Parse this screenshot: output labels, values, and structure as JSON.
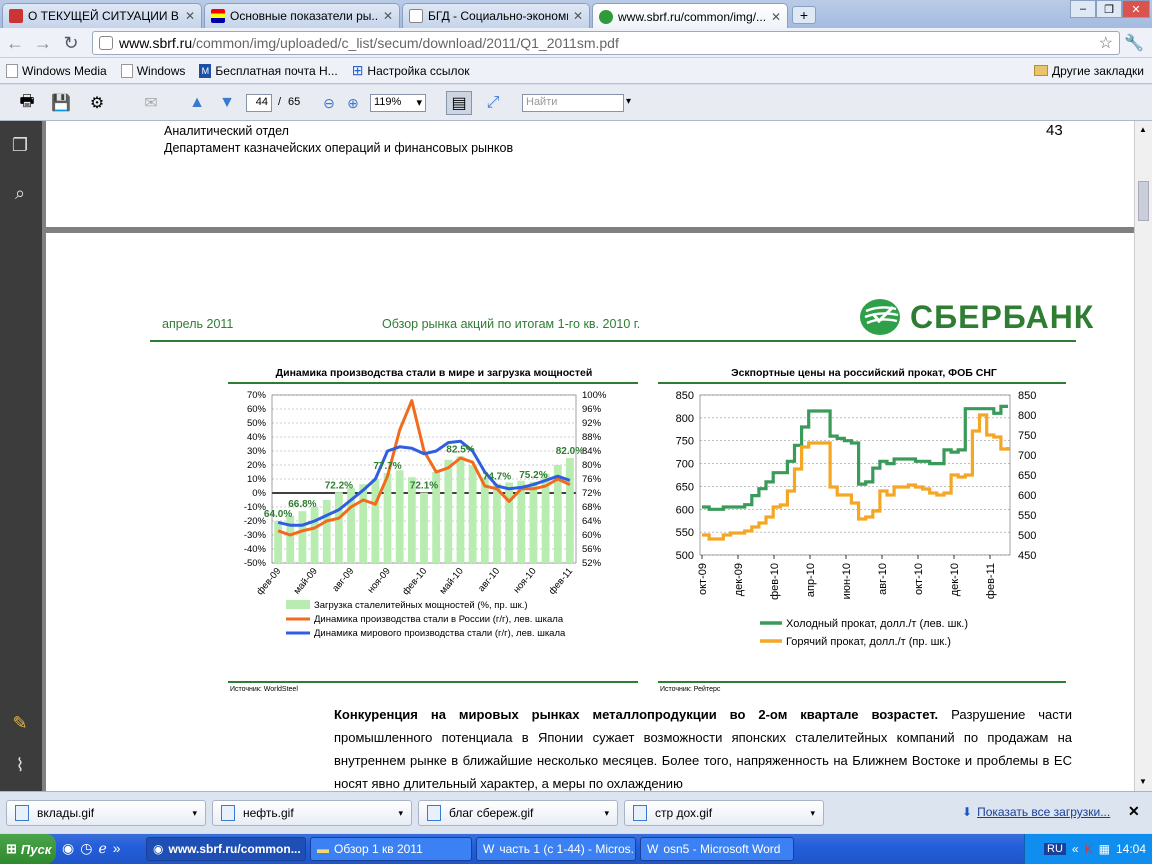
{
  "browser": {
    "tabs": [
      {
        "label": "О ТЕКУЩЕЙ СИТУАЦИИ В..."
      },
      {
        "label": "Основные показатели ры..."
      },
      {
        "label": "БГД - Социально-экономи..."
      },
      {
        "label": "www.sbrf.ru/common/img/..."
      }
    ],
    "url_host": "www.sbrf.ru",
    "url_path": "/common/img/uploaded/c_list/secum/download/2011/Q1_2011sm.pdf",
    "bookmarks": [
      "Windows Media",
      "Windows",
      "Бесплатная почта Н...",
      "Настройка ссылок"
    ],
    "other_bookmarks": "Другие закладки"
  },
  "pdf_toolbar": {
    "page": "44",
    "sep": "/",
    "total": "65",
    "zoom": "119%",
    "search_placeholder": "Найти"
  },
  "page_top": {
    "dept1": "Аналитический отдел",
    "dept2": "Департамент казначейских операций и финансовых рынков",
    "page_num": "43"
  },
  "page_main": {
    "date": "апрель 2011",
    "report_title": "Обзор рынка акций по итогам 1-го кв. 2010 г.",
    "brand": "СБЕРБАНК",
    "paragraph_bold": "Конкуренция на мировых рынках металлопродукции во 2-ом квартале возрастет.",
    "paragraph_rest": " Разрушение части промышленного потенциала в Японии сужает возможности японских сталелитейных компаний по продажам на внутреннем рынке в ближайшие несколько месяцев. Более того, напряженность на Ближнем Востоке и проблемы в ЕС носят явно длительный характер, а меры по охлаждению"
  },
  "colors": {
    "green": "#2e7d32",
    "orange": "#f26b1d",
    "blue": "#2f5fe0",
    "lightgreen": "#b8ecb0",
    "cold": "#3a9a5a",
    "hot": "#f5a623"
  },
  "chart_data": [
    {
      "type": "bar",
      "title": "Динамика производства стали в мире и загрузка мощностей",
      "source": "Источник: WorldSteel",
      "categories": [
        "фев-09",
        "",
        "",
        "май-09",
        "",
        "",
        "авг-09",
        "",
        "",
        "ноя-09",
        "",
        "",
        "фев-10",
        "",
        "",
        "май-10",
        "",
        "",
        "авг-10",
        "",
        "",
        "ноя-10",
        "",
        "",
        "фев-11"
      ],
      "x_tick_labels": [
        "фев-09",
        "май-09",
        "авг-09",
        "ноя-09",
        "фев-10",
        "май-10",
        "авг-10",
        "ноя-10",
        "фев-11"
      ],
      "ylim_left": [
        -50,
        70
      ],
      "ylim_right": [
        52,
        100
      ],
      "y_ticks_left": [
        "70%",
        "60%",
        "50%",
        "40%",
        "30%",
        "20%",
        "10%",
        "0%",
        "-10%",
        "-20%",
        "-30%",
        "-40%",
        "-50%"
      ],
      "y_ticks_right": [
        "100%",
        "96%",
        "92%",
        "88%",
        "84%",
        "80%",
        "76%",
        "72%",
        "68%",
        "64%",
        "60%",
        "56%",
        "52%"
      ],
      "series": [
        {
          "name": "Загрузка сталелитейных мощностей (%, пр. шк.)",
          "axis": "right",
          "kind": "bar",
          "values": [
            64.0,
            65.5,
            66.8,
            68.0,
            70.0,
            72.2,
            73.5,
            74.5,
            76.0,
            77.7,
            78.5,
            76.5,
            72.1,
            78.0,
            81.5,
            82.5,
            80.0,
            76.5,
            74.7,
            75.0,
            75.5,
            75.2,
            77.5,
            80.0,
            82.0
          ]
        },
        {
          "name": "Динамика производства стали в России (г/г), лев. шкала",
          "axis": "left",
          "kind": "line",
          "values": [
            -27,
            -30,
            -27,
            -25,
            -20,
            -18,
            -10,
            -5,
            -8,
            12,
            45,
            66,
            30,
            15,
            18,
            25,
            22,
            5,
            3,
            -6,
            3,
            3,
            5,
            10,
            6
          ]
        },
        {
          "name": "Динамика мирового производства стали (г/г), лев. шкала",
          "axis": "left",
          "kind": "line",
          "values": [
            -21,
            -23,
            -23,
            -20,
            -16,
            -12,
            -5,
            2,
            10,
            30,
            33,
            32,
            28,
            30,
            36,
            37,
            30,
            15,
            5,
            3,
            4,
            6,
            9,
            12,
            9
          ]
        }
      ],
      "data_labels": [
        "64.0%",
        "66.8%",
        "72.2%",
        "77.7%",
        "72.1%",
        "82.5%",
        "74.7%",
        "75.2%",
        "82.0%"
      ]
    },
    {
      "type": "line",
      "title": "Эскпортные цены на российский прокат, ФОБ СНГ",
      "source": "Источник: Рейтерс",
      "x_tick_labels": [
        "окт-09",
        "дек-09",
        "фев-10",
        "апр-10",
        "июн-10",
        "авг-10",
        "окт-10",
        "дек-10",
        "фев-11"
      ],
      "ylim_left": [
        500,
        850
      ],
      "ylim_right": [
        450,
        850
      ],
      "y_ticks_left": [
        "850",
        "800",
        "750",
        "700",
        "650",
        "600",
        "550",
        "500"
      ],
      "y_ticks_right": [
        "850",
        "800",
        "750",
        "700",
        "650",
        "600",
        "550",
        "500",
        "450"
      ],
      "series": [
        {
          "name": "Холодный прокат, долл./т (лев. шк.)",
          "axis": "left",
          "values": [
            605,
            600,
            600,
            605,
            605,
            605,
            610,
            630,
            645,
            660,
            680,
            680,
            705,
            740,
            780,
            815,
            815,
            815,
            760,
            755,
            750,
            745,
            655,
            660,
            690,
            705,
            700,
            710,
            710,
            710,
            705,
            705,
            700,
            700,
            730,
            725,
            730,
            820,
            820,
            820,
            820,
            810,
            825,
            825
          ]
        },
        {
          "name": "Горячий прокат, долл./т (пр. шк.)",
          "axis": "right",
          "values": [
            500,
            490,
            490,
            500,
            505,
            505,
            510,
            520,
            530,
            545,
            570,
            575,
            610,
            665,
            720,
            730,
            730,
            730,
            620,
            600,
            600,
            580,
            540,
            545,
            560,
            610,
            600,
            620,
            620,
            625,
            620,
            615,
            605,
            600,
            605,
            650,
            645,
            650,
            760,
            800,
            750,
            745,
            715,
            720
          ]
        }
      ]
    }
  ],
  "downloads": [
    "вклады.gif",
    "нефть.gif",
    "благ сбереж.gif",
    "стр дох.gif"
  ],
  "downloads_show_all": "Показать все загрузки...",
  "taskbar": {
    "start": "Пуск",
    "tasks": [
      "www.sbrf.ru/common...",
      "Обзор 1 кв 2011",
      "часть 1 (с 1-44) - Micros...",
      "osn5 - Microsoft Word"
    ],
    "lang": "RU",
    "clock": "14:04"
  }
}
